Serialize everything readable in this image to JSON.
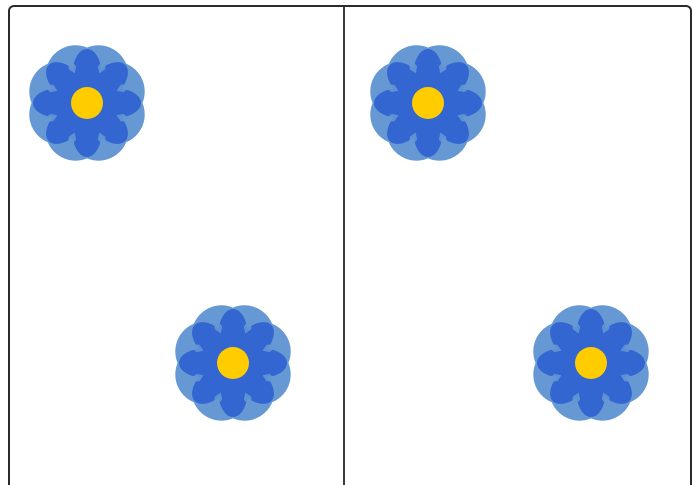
{
  "colors": {
    "outer_petal": "#6699d4",
    "inner_petal": "#3366d0",
    "center": "#ffcc00",
    "border": "#2b2b2b",
    "divider": "#3c3c3c"
  },
  "panels": [
    {
      "name": "left",
      "flower_count": 2
    },
    {
      "name": "right",
      "flower_count": 2
    }
  ],
  "icons": {
    "flower": "flower-icon"
  }
}
